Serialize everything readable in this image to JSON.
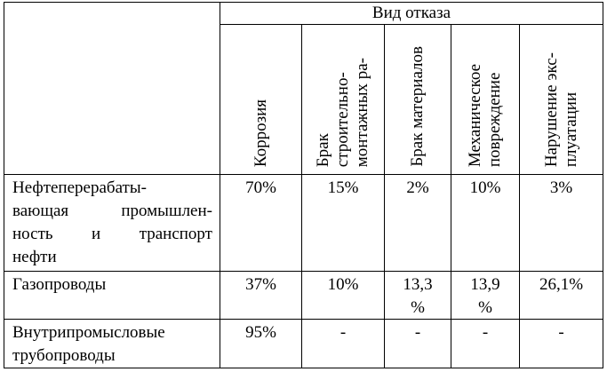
{
  "header": {
    "group_label": "Вид отказа",
    "columns": [
      [
        "Коррозия"
      ],
      [
        "Брак",
        "строительно-",
        "монтажных ра-"
      ],
      [
        "Брак материалов"
      ],
      [
        "Механическое",
        "повреждение"
      ],
      [
        "Нарушение экс-",
        "плуатации"
      ]
    ]
  },
  "rows": [
    {
      "label": [
        "Нефтеперерабаты-",
        "вающая промышлен-",
        "ность и транспорт",
        "нефти"
      ],
      "values": [
        "70%",
        "15%",
        "2%",
        "10%",
        "3%"
      ]
    },
    {
      "label": [
        "Газопроводы"
      ],
      "values": [
        "37%",
        "10%",
        "13,3 %",
        "13,9 %",
        "26,1%"
      ]
    },
    {
      "label": [
        "Внутрипромысловые",
        "трубопроводы"
      ],
      "values": [
        "95%",
        "-",
        "-",
        "-",
        "-"
      ]
    }
  ]
}
